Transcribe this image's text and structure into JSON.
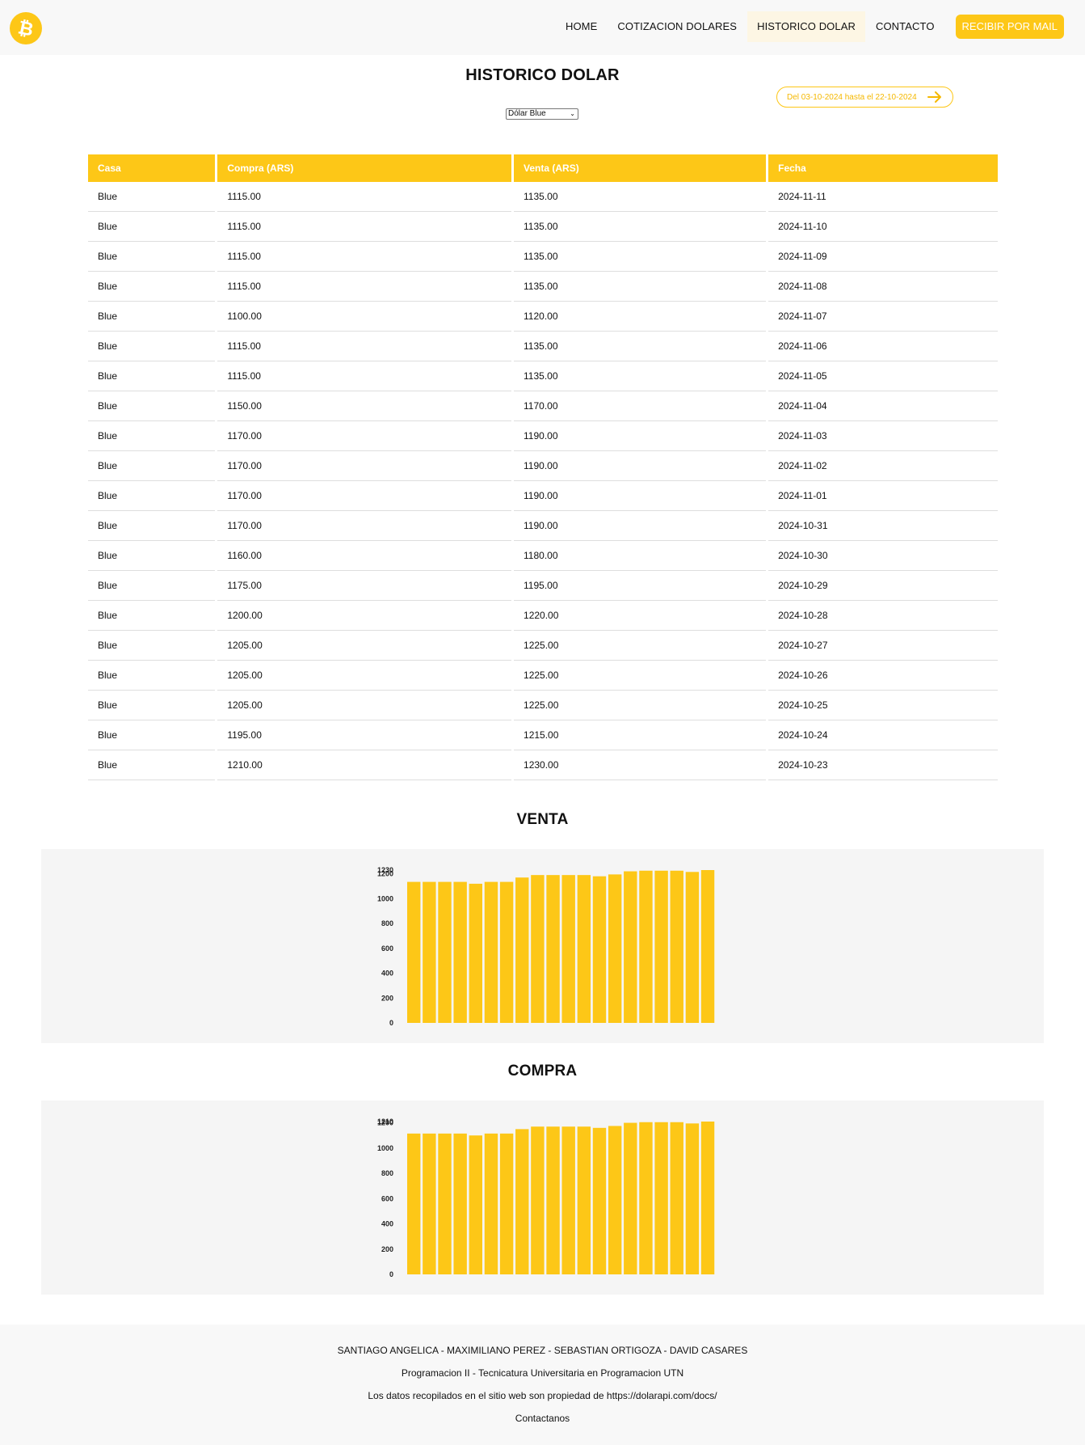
{
  "nav": {
    "items": [
      "HOME",
      "COTIZACION DOLARES",
      "HISTORICO DOLAR",
      "CONTACTO"
    ],
    "active": "HISTORICO DOLAR",
    "cta": "RECIBIR POR MAIL"
  },
  "colors": {
    "accent": "#fdc717",
    "panel": "#f5f5f5",
    "nav_bg": "#f8f8f8"
  },
  "page": {
    "title": "HISTORICO DOLAR",
    "range_text": "Del 03-10-2024 hasta el 22-10-2024",
    "select_value": "Dólar Blue"
  },
  "table": {
    "headers": [
      "Casa",
      "Compra (ARS)",
      "Venta (ARS)",
      "Fecha"
    ],
    "rows": [
      [
        "Blue",
        "1115.00",
        "1135.00",
        "2024-11-11"
      ],
      [
        "Blue",
        "1115.00",
        "1135.00",
        "2024-11-10"
      ],
      [
        "Blue",
        "1115.00",
        "1135.00",
        "2024-11-09"
      ],
      [
        "Blue",
        "1115.00",
        "1135.00",
        "2024-11-08"
      ],
      [
        "Blue",
        "1100.00",
        "1120.00",
        "2024-11-07"
      ],
      [
        "Blue",
        "1115.00",
        "1135.00",
        "2024-11-06"
      ],
      [
        "Blue",
        "1115.00",
        "1135.00",
        "2024-11-05"
      ],
      [
        "Blue",
        "1150.00",
        "1170.00",
        "2024-11-04"
      ],
      [
        "Blue",
        "1170.00",
        "1190.00",
        "2024-11-03"
      ],
      [
        "Blue",
        "1170.00",
        "1190.00",
        "2024-11-02"
      ],
      [
        "Blue",
        "1170.00",
        "1190.00",
        "2024-11-01"
      ],
      [
        "Blue",
        "1170.00",
        "1190.00",
        "2024-10-31"
      ],
      [
        "Blue",
        "1160.00",
        "1180.00",
        "2024-10-30"
      ],
      [
        "Blue",
        "1175.00",
        "1195.00",
        "2024-10-29"
      ],
      [
        "Blue",
        "1200.00",
        "1220.00",
        "2024-10-28"
      ],
      [
        "Blue",
        "1205.00",
        "1225.00",
        "2024-10-27"
      ],
      [
        "Blue",
        "1205.00",
        "1225.00",
        "2024-10-26"
      ],
      [
        "Blue",
        "1205.00",
        "1225.00",
        "2024-10-25"
      ],
      [
        "Blue",
        "1195.00",
        "1215.00",
        "2024-10-24"
      ],
      [
        "Blue",
        "1210.00",
        "1230.00",
        "2024-10-23"
      ]
    ]
  },
  "chart_data": [
    {
      "type": "bar",
      "title": "VENTA",
      "values": [
        1135,
        1135,
        1135,
        1135,
        1120,
        1135,
        1135,
        1170,
        1190,
        1190,
        1190,
        1190,
        1180,
        1195,
        1220,
        1225,
        1225,
        1225,
        1215,
        1230
      ],
      "yticks": [
        0,
        200,
        400,
        600,
        800,
        1000,
        1200,
        1230
      ],
      "ylim": [
        0,
        1230
      ],
      "color": "#fdc717",
      "grid": false
    },
    {
      "type": "bar",
      "title": "COMPRA",
      "values": [
        1115,
        1115,
        1115,
        1115,
        1100,
        1115,
        1115,
        1150,
        1170,
        1170,
        1170,
        1170,
        1160,
        1175,
        1200,
        1205,
        1205,
        1205,
        1195,
        1210
      ],
      "yticks": [
        0,
        200,
        400,
        600,
        800,
        1000,
        1200,
        1210
      ],
      "ylim": [
        0,
        1210
      ],
      "color": "#fdc717",
      "grid": false
    }
  ],
  "footer": {
    "authors": "SANTIAGO ANGELICA - MAXIMILIANO PEREZ - SEBASTIAN ORTIGOZA - DAVID CASARES",
    "course": "Programacion II - Tecnicatura Universitaria en Programacion UTN",
    "source": "Los datos recopilados en el sitio web son propiedad de https://dolarapi.com/docs/",
    "contact": "Contactanos"
  }
}
